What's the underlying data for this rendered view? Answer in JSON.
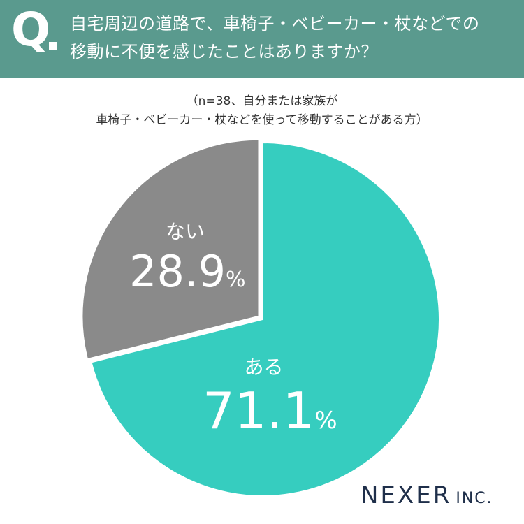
{
  "header": {
    "q_letter": "Q",
    "question_line1": "自宅周辺の道路で、車椅子・ベビーカー・杖などでの",
    "question_line2": "移動に不便を感じたことはありますか？"
  },
  "note": {
    "line1": "（n=38、自分または家族が",
    "line2": "車椅子・ベビーカー・杖などを使って移動することがある方）"
  },
  "colors": {
    "header_bg": "#5a9a8e",
    "yes": "#36cdbf",
    "no": "#8a8a8a"
  },
  "chart_data": {
    "type": "pie",
    "slices": [
      {
        "label": "ある",
        "value": 71.1,
        "value_text": "71.1",
        "unit": "%",
        "color": "#36cdbf"
      },
      {
        "label": "ない",
        "value": 28.9,
        "value_text": "28.9",
        "unit": "%",
        "color": "#8a8a8a"
      }
    ],
    "start": "top",
    "direction": "clockwise",
    "exploded_slice": "ない"
  },
  "logo": {
    "main": "NEXER",
    "sub": "INC."
  }
}
